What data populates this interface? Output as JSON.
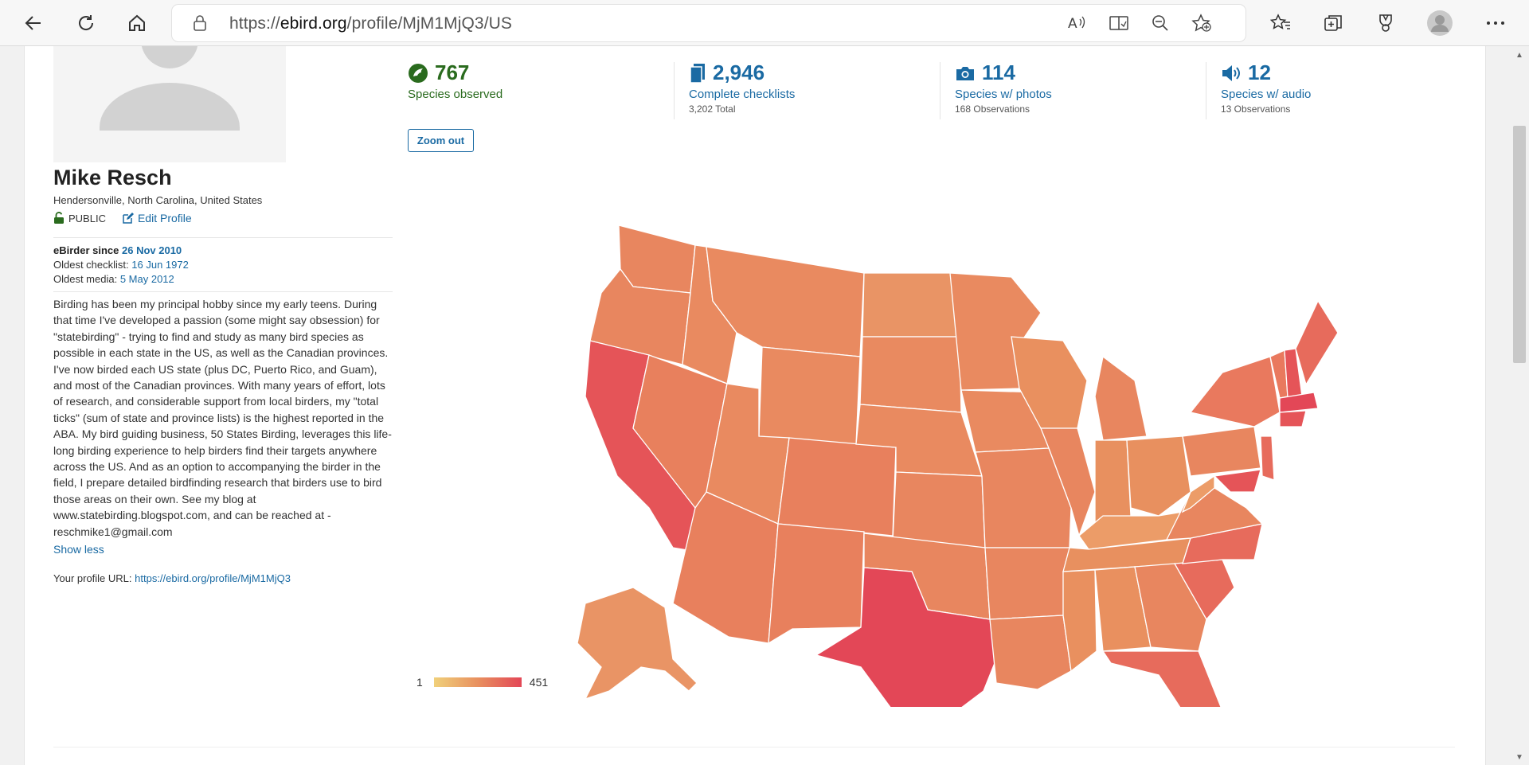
{
  "browser": {
    "url_prefix": "https://",
    "url_domain": "ebird.org",
    "url_path": "/profile/MjM1MjQ3/US",
    "icons": [
      "back-icon",
      "refresh-icon",
      "home-icon",
      "lock-icon",
      "read-aloud-icon",
      "immersive-reader-icon",
      "zoom-out-icon",
      "add-favorite-icon",
      "favorites-icon",
      "collections-icon",
      "rewards-icon",
      "profile-icon",
      "more-icon"
    ]
  },
  "profile": {
    "name": "Mike Resch",
    "location": "Hendersonville, North Carolina, United States",
    "visibility": "PUBLIC",
    "edit_label": "Edit Profile",
    "since_label": "eBirder since",
    "since_date": "26 Nov 2010",
    "oldest_checklist_label": "Oldest checklist:",
    "oldest_checklist": "16 Jun 1972",
    "oldest_media_label": "Oldest media:",
    "oldest_media": "5 May 2012",
    "bio": "Birding has been my principal hobby since my early teens. During that time I've developed a passion (some might say obsession) for \"statebirding\" - trying to find and study as many bird species as possible in each state in the US, as well as the Canadian provinces. I've now birded each US state (plus DC, Puerto Rico, and Guam), and most of the Canadian provinces. With many years of effort, lots of research, and considerable support from local birders, my \"total ticks\" (sum of state and province lists) is the highest reported in the ABA. My bird guiding business, 50 States Birding, leverages this life-long birding experience to help birders find their targets anywhere across the US. And as an option to accompanying the birder in the field, I prepare detailed birdfinding research that birders use to bird those areas on their own. See my blog at www.statebirding.blogspot.com, and can be reached at - reschmike1@gmail.com",
    "show_less": "Show less",
    "profile_url_label": "Your profile URL:",
    "profile_url": "https://ebird.org/profile/MjM1MjQ3"
  },
  "stats": [
    {
      "value": "767",
      "label": "Species observed",
      "sub": ""
    },
    {
      "value": "2,946",
      "label": "Complete checklists",
      "sub": "3,202 Total"
    },
    {
      "value": "114",
      "label": "Species w/ photos",
      "sub": "168 Observations"
    },
    {
      "value": "12",
      "label": "Species w/ audio",
      "sub": "13 Observations"
    }
  ],
  "map": {
    "zoom_label": "Zoom out",
    "legend_min": "1",
    "legend_max": "451",
    "colors": {
      "low": "#f0d07a",
      "mid": "#e8905f",
      "high": "#e34757"
    }
  }
}
